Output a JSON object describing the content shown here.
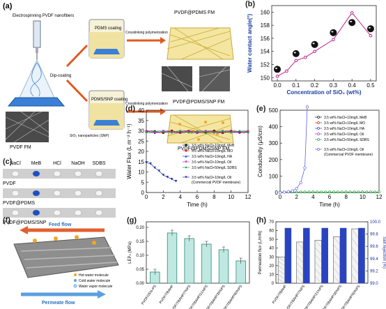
{
  "panels": {
    "a": {
      "label": "(a)",
      "process": {
        "step1": "Electrospinning PVDF nanofibers",
        "pdms_coating": "PDMS coating",
        "dip_coating": "Dip-coating",
        "pdms_snp_coating": "PDMS/SNP coating",
        "snp_note": "SiO₂ nanoparticles (SNP)",
        "crosslink1": "Crosslinking polymerization",
        "crosslink2": "Crosslinking polymerization",
        "product1": "PVDF@PDMS FM",
        "product2": "PVDF@PDMS/SNP FM",
        "pvdf_fm": "PVDF FM"
      }
    },
    "b": {
      "label": "(b)",
      "chart_data": {
        "type": "scatter",
        "xlabel": "Concentration of SiO₂ (wt%)",
        "ylabel": "Water contact angle(°)",
        "xlim": [
          -0.03,
          0.53
        ],
        "ylim": [
          149.5,
          161
        ],
        "xticks": [
          "0.0",
          "0.1",
          "0.2",
          "0.3",
          "0.4",
          "0.5"
        ],
        "yticks": [
          "150",
          "152",
          "154",
          "156",
          "158",
          "160"
        ],
        "x": [
          0.0,
          0.05,
          0.1,
          0.15,
          0.2,
          0.3,
          0.4,
          0.5
        ],
        "y": [
          150.2,
          151.0,
          152.6,
          153.1,
          154.0,
          155.8,
          159.9,
          156.4
        ]
      }
    },
    "c": {
      "label": "(c)",
      "columns": [
        "NaCl",
        "MeB",
        "HCl",
        "NaOH",
        "SDBS"
      ],
      "rows": [
        "PVDF",
        "PVDF@PDMS",
        "PVDF@PDMS/SNP"
      ]
    },
    "d": {
      "label": "(d)",
      "chart_data": {
        "type": "line",
        "xlabel": "Time (h)",
        "ylabel": "Water Flux (L m⁻² h⁻¹)",
        "xlim": [
          0,
          12
        ],
        "ylim": [
          0,
          40
        ],
        "xticks": [
          "0",
          "2",
          "4",
          "6",
          "8",
          "10",
          "12"
        ],
        "yticks": [
          "0",
          "5",
          "10",
          "15",
          "20",
          "25",
          "30",
          "35",
          "40"
        ],
        "series": [
          {
            "name": "3.5 wt% NaCl+10mg/L MeB",
            "color": "#111111",
            "marker": "square"
          },
          {
            "name": "3.5 wt% NaCl+10mg/L MO",
            "color": "#e02020",
            "marker": "circle"
          },
          {
            "name": "3.5 wt% NaCl+10mg/L HA",
            "color": "#2040d0",
            "marker": "triangle"
          },
          {
            "name": "3.5 wt% NaCl+10mg/L Oil",
            "color": "#c030c0",
            "marker": "tri-down"
          },
          {
            "name": "3.5 wt% NaCl+50mg/L SDBS",
            "color": "#20a040",
            "marker": "diamond"
          },
          {
            "name": "3.5 wt% NaCl+10mg/L Oil",
            "color": "#2030a0",
            "marker": "tri-down",
            "x": [
              0,
              0.5,
              1,
              1.5,
              2,
              2.5,
              3,
              3.5
            ],
            "y": [
              14.5,
              14,
              12,
              10.5,
              8.5,
              7.5,
              6.5,
              5.5
            ]
          }
        ],
        "note": "(Commercial PVDF membrane)",
        "stable_flux": 29.5
      }
    },
    "e": {
      "label": "(e)",
      "chart_data": {
        "type": "line",
        "xlabel": "Time (h)",
        "ylabel": "Conductivity (μS/cm)",
        "xlim": [
          0,
          12
        ],
        "ylim": [
          0,
          500
        ],
        "xticks": [
          "0",
          "2",
          "4",
          "6",
          "8",
          "10",
          "12"
        ],
        "yticks": [
          "0",
          "100",
          "200",
          "300",
          "400",
          "500"
        ],
        "series": [
          {
            "name": "3.5 wt% NaCl+10mg/L MeB",
            "color": "#111111"
          },
          {
            "name": "3.5 wt% NaCl+10mg/L MO",
            "color": "#e02020"
          },
          {
            "name": "3.5 wt% NaCl+10mg/L HA",
            "color": "#2040d0"
          },
          {
            "name": "3.5 wt% NaCl+10mg/L Oil",
            "color": "#c030c0"
          },
          {
            "name": "3.5 wt% NaCl+50mg/L SDBS",
            "color": "#20a040"
          },
          {
            "name": "3.5 wt% NaCl+10mg/L Oil",
            "color": "#6060e0",
            "x": [
              0,
              0.5,
              1,
              1.5,
              2,
              2.5,
              3,
              3.3
            ],
            "y": [
              0,
              2,
              5,
              10,
              25,
              60,
              150,
              520
            ]
          }
        ],
        "note": "(Commercial PVDF membrane)"
      }
    },
    "f": {
      "label": "(f)",
      "feed": "Feed flow",
      "permeate": "Permeate flow",
      "legend": [
        "Hot water molecule",
        "Cold water molecule",
        "Water vapor molecule"
      ]
    },
    "g": {
      "label": "(g)",
      "chart_data": {
        "type": "bar",
        "ylabel": "LEPₙ (MPa)",
        "ylim": [
          0,
          0.22
        ],
        "yticks": [
          "0.00",
          "0.05",
          "0.10",
          "0.15",
          "0.20"
        ],
        "categories": [
          "PVDF/25%-PS",
          "PVDF/TBAHP",
          "PVDF/TBAHP/7%PS",
          "PVDF/TBAHP/21%PS",
          "PVDF/TBAHP/35%PS",
          "PVDF/TBAHP/50%PS"
        ],
        "values": [
          0.04,
          0.18,
          0.16,
          0.14,
          0.12,
          0.08
        ]
      }
    },
    "h": {
      "label": "(h)",
      "chart_data": {
        "type": "bar",
        "ylabel": "Permeation flux (L/m²h)",
        "y2label": "Salt rejection (%)",
        "ylim": [
          0,
          70
        ],
        "y2lim": [
          99.0,
          100.0
        ],
        "yticks": [
          "0",
          "10",
          "20",
          "30",
          "40",
          "50",
          "60",
          "70"
        ],
        "y2ticks": [
          "99.0",
          "99.2",
          "99.4",
          "99.6",
          "99.8",
          "100.0"
        ],
        "categories": [
          "PVDF/TBAHP",
          "PVDF/TBAHP/7%PS",
          "PVDF/TBAHP/21%PS",
          "PVDF/TBAHP/35%PS",
          "PVDF/TBAHP/50%PS"
        ],
        "series": [
          {
            "name": "flux",
            "values": [
              30,
              47,
              49,
              53,
              62
            ]
          },
          {
            "name": "rejection",
            "values": [
              99.9,
              99.9,
              99.9,
              99.9,
              99.9
            ]
          }
        ]
      }
    }
  }
}
